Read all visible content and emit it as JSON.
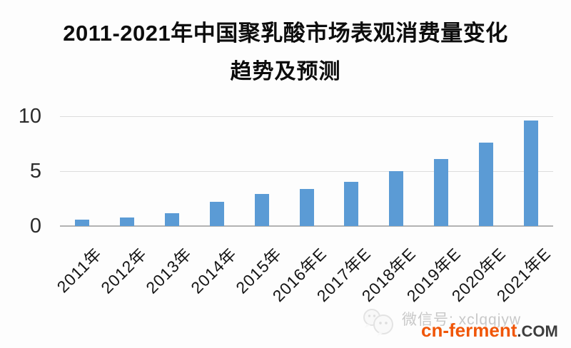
{
  "chart_data": {
    "type": "bar",
    "title": "2011-2021年中国聚乳酸市场表观消费量变化 趋势及预测",
    "title_line1": "2011-2021年中国聚乳酸市场表观消费量变化",
    "title_line2": "趋势及预测",
    "categories": [
      "2011年",
      "2012年",
      "2013年",
      "2014年",
      "2015年",
      "2016年E",
      "2017年E",
      "2018年E",
      "2019年E",
      "2020年E",
      "2021年E"
    ],
    "values": [
      0.6,
      0.8,
      1.2,
      2.2,
      2.9,
      3.4,
      4.0,
      5.0,
      6.1,
      7.6,
      9.6
    ],
    "xlabel": "",
    "ylabel": "",
    "ylim": [
      0,
      10
    ],
    "yticks": [
      0,
      5,
      10
    ],
    "grid": true,
    "legend": "none",
    "bar_color": "#5b9bd5",
    "gridline_color": "#dcdcdc",
    "axisline_color": "#b3b3b3"
  },
  "watermark": {
    "wechat_label": "微信号: xclqqjyw",
    "site_name": "cn-ferment",
    "site_tld": ".COM",
    "site_name_color": "#f05608",
    "icon": "wechat-icon"
  }
}
